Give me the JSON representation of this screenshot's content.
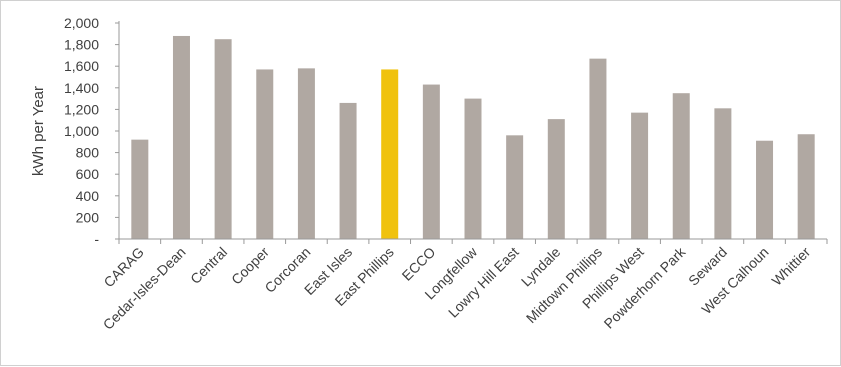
{
  "chart_data": {
    "type": "bar",
    "title": "",
    "xlabel": "",
    "ylabel": "kWh per Year",
    "ylim": [
      0,
      2000
    ],
    "yticks": [
      0,
      200,
      400,
      600,
      800,
      1000,
      1200,
      1400,
      1600,
      1800,
      2000
    ],
    "ytick_labels": [
      "-",
      "200",
      "400",
      "600",
      "800",
      "1,000",
      "1,200",
      "1,400",
      "1,600",
      "1,800",
      "2,000"
    ],
    "categories": [
      "CARAG",
      "Cedar-Isles-Dean",
      "Central",
      "Cooper",
      "Corcoran",
      "East Isles",
      "East Phillips",
      "ECCO",
      "Longfellow",
      "Lowry Hill East",
      "Lyndale",
      "Midtown Phillips",
      "Phillips West",
      "Powderhorn Park",
      "Seward",
      "West Calhoun",
      "Whittier"
    ],
    "values": [
      920,
      1880,
      1850,
      1570,
      1580,
      1260,
      1570,
      1430,
      1300,
      960,
      1110,
      1670,
      1170,
      1350,
      1210,
      910,
      970
    ],
    "highlight": "East Phillips",
    "colors": {
      "bar": "#b0a8a2",
      "highlight": "#f0c20e",
      "axis": "#9a9a9a"
    },
    "grid": false,
    "legend": "none"
  }
}
